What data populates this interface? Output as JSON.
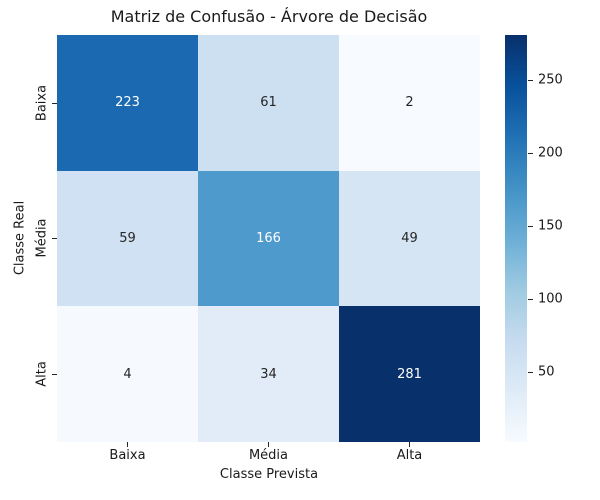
{
  "figure": {
    "background": "#ffffff"
  },
  "chart_data": {
    "type": "heatmap",
    "title": "Matriz de Confusão - Árvore de Decisão",
    "xlabel": "Classe Prevista",
    "ylabel": "Classe Real",
    "x_tick_labels": [
      "Baixa",
      "Média",
      "Alta"
    ],
    "y_tick_labels": [
      "Baixa",
      "Média",
      "Alta"
    ],
    "values": [
      [
        223,
        61,
        2
      ],
      [
        59,
        166,
        49
      ],
      [
        4,
        34,
        281
      ]
    ],
    "cell_colors": [
      [
        "#1b69b0",
        "#cde0f1",
        "#f7fbff"
      ],
      [
        "#cfe1f2",
        "#4f9acd",
        "#d6e5f4"
      ],
      [
        "#f6fafe",
        "#e1ecf8",
        "#08306b"
      ]
    ],
    "cell_text_colors": [
      [
        "#ffffff",
        "#262626",
        "#262626"
      ],
      [
        "#262626",
        "#ffffff",
        "#262626"
      ],
      [
        "#262626",
        "#262626",
        "#ffffff"
      ]
    ],
    "colormap": "Blues",
    "grid": false,
    "colorbar": {
      "vmin": 2,
      "vmax": 281,
      "ticks": [
        50,
        100,
        150,
        200,
        250
      ],
      "gradient_stops": [
        "#f7fbff",
        "#deebf7",
        "#c6dbef",
        "#9ecae1",
        "#6baed6",
        "#4292c6",
        "#2171b5",
        "#08519c",
        "#08306b"
      ]
    }
  }
}
